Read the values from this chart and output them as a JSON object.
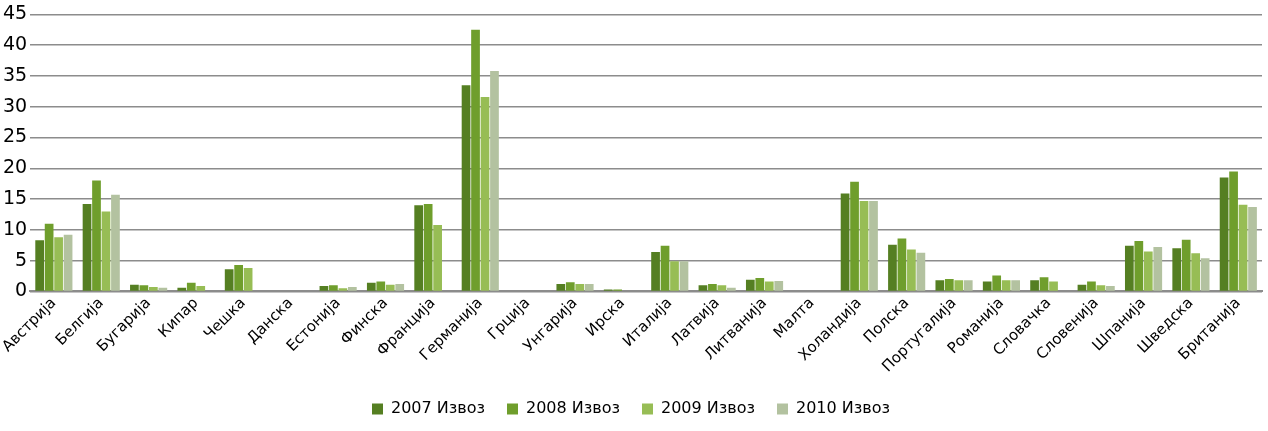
{
  "chart_data": {
    "type": "bar",
    "categories": [
      "Австрија",
      "Белгија",
      "Бугарија",
      "Кипар",
      "Чешка",
      "Данска",
      "Естонија",
      "Финска",
      "Франција",
      "Германија",
      "Грција",
      "Унгарија",
      "Ирска",
      "Италија",
      "Латвија",
      "Литванија",
      "Малта",
      "Холандија",
      "Полска",
      "Португалија",
      "Романија",
      "Словачка",
      "Словенија",
      "Шпанија",
      "Шведска",
      "Британија"
    ],
    "series": [
      {
        "name": "2007 Извоз",
        "color": "#557f22",
        "values": [
          8.3,
          14.2,
          1.1,
          0.6,
          3.6,
          null,
          0.9,
          1.4,
          14,
          33.5,
          0.1,
          1.2,
          0.3,
          6.4,
          1.0,
          1.9,
          0.1,
          15.9,
          7.6,
          1.8,
          1.6,
          1.8,
          1.1,
          7.4,
          7.0,
          18.5
        ]
      },
      {
        "name": "2008 Извоз",
        "color": "#6f9e2c",
        "values": [
          11,
          18,
          1.0,
          1.4,
          4.3,
          null,
          1.0,
          1.6,
          14.2,
          42.5,
          0.1,
          1.5,
          0.3,
          7.4,
          1.2,
          2.2,
          0.1,
          17.8,
          8.6,
          2.0,
          2.6,
          2.3,
          1.6,
          8.2,
          8.4,
          19.5
        ]
      },
      {
        "name": "2009 Извоз",
        "color": "#97bd55",
        "values": [
          8.8,
          13,
          0.7,
          0.9,
          3.8,
          null,
          0.5,
          1.1,
          10.8,
          31.6,
          0.1,
          1.2,
          0.1,
          4.9,
          1.0,
          1.6,
          0.1,
          14.7,
          6.8,
          1.8,
          1.8,
          1.6,
          1.0,
          6.5,
          6.2,
          14.1
        ]
      },
      {
        "name": "2010 Извоз",
        "color": "#b3c2a0",
        "values": [
          9.2,
          15.7,
          0.6,
          null,
          null,
          null,
          0.7,
          1.2,
          null,
          35.8,
          0.1,
          1.2,
          0.1,
          4.9,
          0.6,
          1.7,
          0.1,
          14.7,
          6.3,
          1.8,
          1.8,
          null,
          0.9,
          7.2,
          5.4,
          13.7
        ]
      }
    ],
    "ylim": [
      0,
      45
    ],
    "yticks": [
      0,
      5,
      10,
      15,
      20,
      25,
      30,
      35,
      40,
      45
    ],
    "grid": "y",
    "legend": "bottom"
  }
}
